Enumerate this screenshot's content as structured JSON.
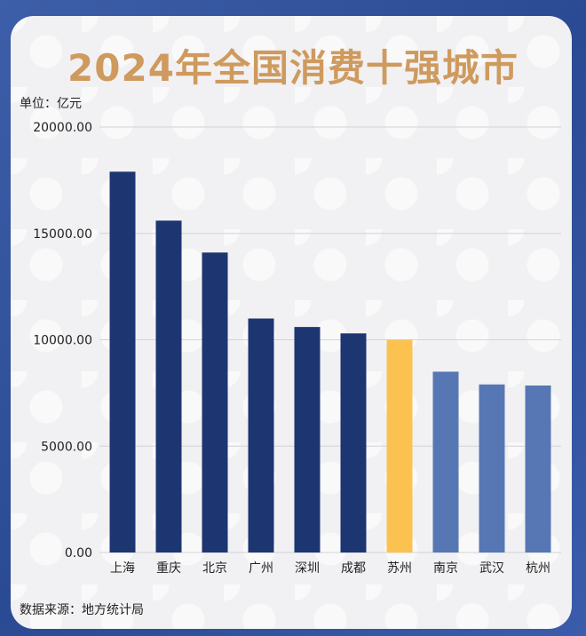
{
  "chart_data": {
    "type": "bar",
    "title": "2024年全国消费十强城市",
    "unit_label": "单位：亿元",
    "source": "数据来源：地方统计局",
    "categories": [
      "上海",
      "重庆",
      "北京",
      "广州",
      "深圳",
      "成都",
      "苏州",
      "南京",
      "武汉",
      "杭州"
    ],
    "values": [
      17900,
      15600,
      14100,
      11000,
      10600,
      10300,
      10000,
      8500,
      7900,
      7850
    ],
    "bar_colors": [
      "#1d3571",
      "#1d3571",
      "#1d3571",
      "#1d3571",
      "#1d3571",
      "#1d3571",
      "#fcc24f",
      "#5677b4",
      "#5677b4",
      "#5677b4"
    ],
    "yticks": [
      "0.00",
      "5000.00",
      "10000.00",
      "15000.00",
      "20000.00"
    ],
    "ylim": [
      0,
      20000
    ],
    "grid": true
  }
}
